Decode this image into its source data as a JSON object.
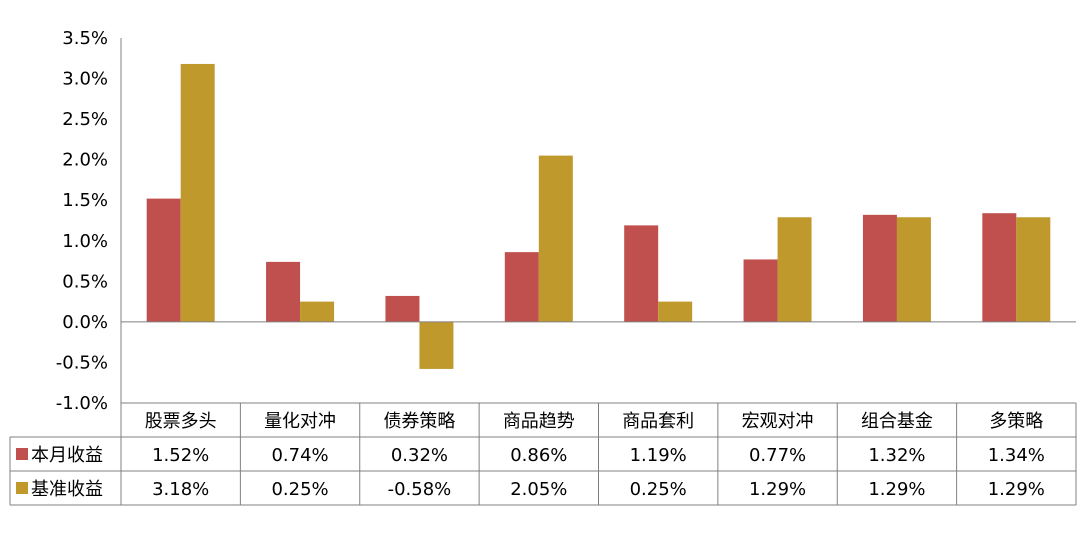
{
  "chart_data": {
    "type": "bar",
    "categories": [
      "股票多头",
      "量化对冲",
      "债券策略",
      "商品趋势",
      "商品套利",
      "宏观对冲",
      "组合基金",
      "多策略"
    ],
    "series": [
      {
        "name": "本月收益",
        "color": "#C0504D",
        "values": [
          1.52,
          0.74,
          0.32,
          0.86,
          1.19,
          0.77,
          1.32,
          1.34
        ],
        "labels": [
          "1.52%",
          "0.74%",
          "0.32%",
          "0.86%",
          "1.19%",
          "0.77%",
          "1.32%",
          "1.34%"
        ]
      },
      {
        "name": "基准收益",
        "color": "#C0992D",
        "values": [
          3.18,
          0.25,
          -0.58,
          2.05,
          0.25,
          1.29,
          1.29,
          1.29
        ],
        "labels": [
          "3.18%",
          "0.25%",
          "-0.58%",
          "2.05%",
          "0.25%",
          "1.29%",
          "1.29%",
          "1.29%"
        ]
      }
    ],
    "ylim": [
      -1.0,
      3.5
    ],
    "yticks": [
      3.5,
      3.0,
      2.5,
      2.0,
      1.5,
      1.0,
      0.5,
      0.0,
      -0.5,
      -1.0
    ],
    "ytick_labels": [
      "3.5%",
      "3.0%",
      "2.5%",
      "2.0%",
      "1.5%",
      "1.0%",
      "0.5%",
      "0.0%",
      "-0.5%",
      "-1.0%"
    ],
    "grid": false,
    "legend": "data-table"
  }
}
